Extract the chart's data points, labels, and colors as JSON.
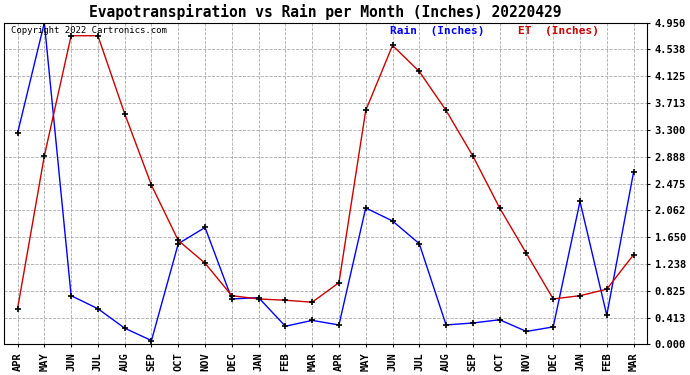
{
  "title": "Evapotranspiration vs Rain per Month (Inches) 20220429",
  "copyright_text": "Copyright 2022 Cartronics.com",
  "legend_rain": "Rain  (Inches)",
  "legend_et": "ET  (Inches)",
  "months": [
    "APR",
    "MAY",
    "JUN",
    "JUL",
    "AUG",
    "SEP",
    "OCT",
    "NOV",
    "DEC",
    "JAN",
    "FEB",
    "MAR",
    "APR",
    "MAY",
    "JUN",
    "JUL",
    "AUG",
    "SEP",
    "OCT",
    "NOV",
    "DEC",
    "JAN",
    "FEB",
    "MAR"
  ],
  "rain_values": [
    3.25,
    4.95,
    0.75,
    0.55,
    0.25,
    0.06,
    1.55,
    1.8,
    0.7,
    0.72,
    0.28,
    0.37,
    0.3,
    2.1,
    1.9,
    1.55,
    0.3,
    0.33,
    0.38,
    0.2,
    0.27,
    2.2,
    0.45,
    2.65
  ],
  "et_values": [
    0.55,
    2.9,
    4.75,
    4.75,
    3.55,
    2.45,
    1.6,
    1.25,
    0.75,
    0.7,
    0.68,
    0.65,
    0.95,
    3.6,
    4.6,
    4.2,
    3.6,
    2.9,
    2.1,
    1.4,
    0.7,
    0.75,
    0.85,
    1.38
  ],
  "yticks": [
    0.0,
    0.413,
    0.825,
    1.238,
    1.65,
    2.062,
    2.475,
    2.888,
    3.3,
    3.713,
    4.125,
    4.538,
    4.95
  ],
  "rain_color": "#0000ff",
  "et_color": "#cc0000",
  "background_color": "#ffffff",
  "grid_color": "#aaaaaa",
  "title_fontsize": 10.5,
  "tick_fontsize": 7.5,
  "copyright_fontsize": 6.5,
  "legend_fontsize": 8,
  "ylim_min": 0.0,
  "ylim_max": 4.95
}
